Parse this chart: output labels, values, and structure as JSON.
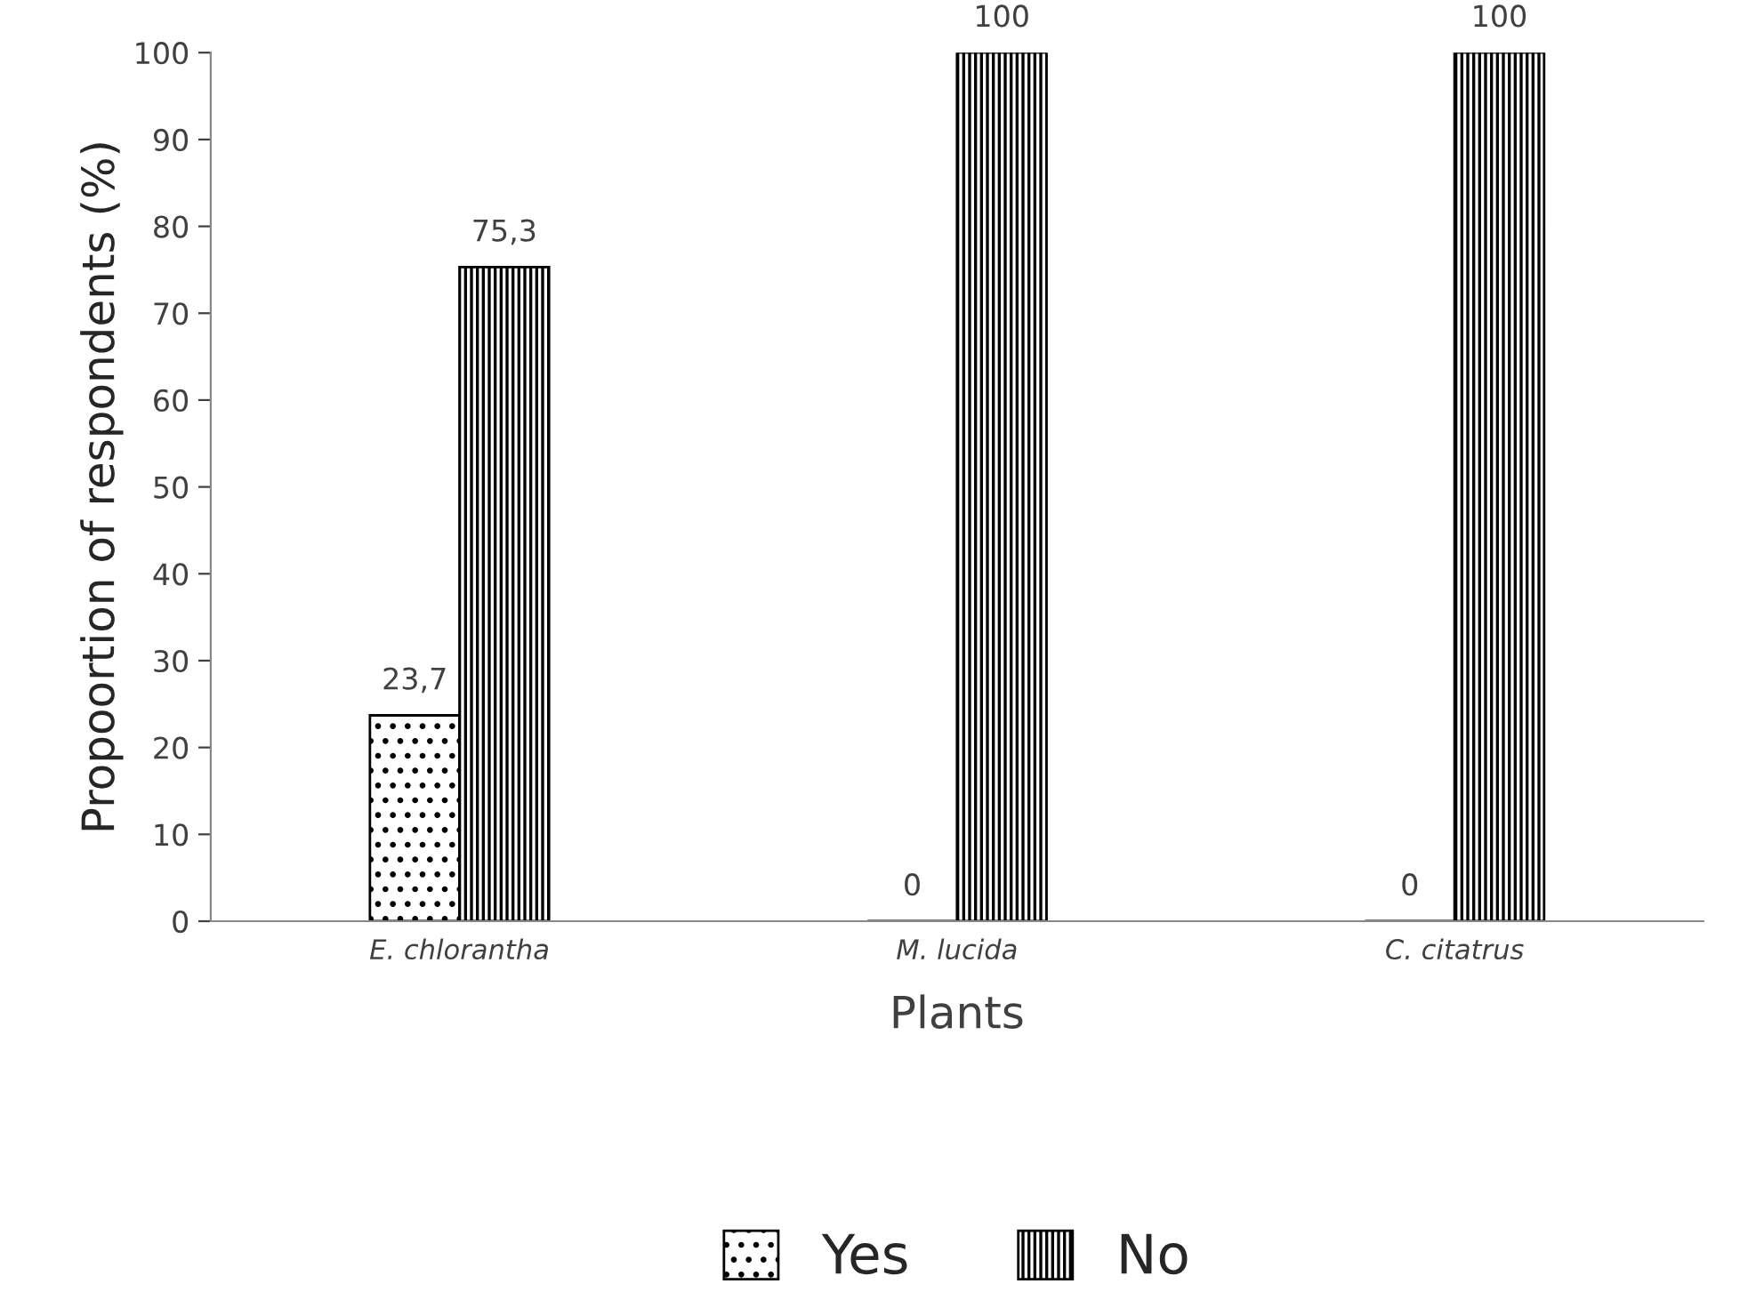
{
  "chart_data": {
    "type": "bar",
    "xlabel": "Plants",
    "ylabel": "Propoortion of respondents (%)",
    "categories": [
      "E. chlorantha",
      "M. lucida",
      "C. citatrus"
    ],
    "series": [
      {
        "name": "Yes",
        "color": "#000000",
        "values": [
          23.7,
          0,
          0
        ],
        "value_labels": [
          "23,7",
          "0",
          "0"
        ]
      },
      {
        "name": "No",
        "color": "#000000",
        "values": [
          75.3,
          100,
          100
        ],
        "value_labels": [
          "75,3",
          "100",
          "100"
        ]
      }
    ],
    "ylim": [
      0,
      100
    ],
    "yticks": [
      0,
      10,
      20,
      30,
      40,
      50,
      60,
      70,
      80,
      90,
      100
    ],
    "grid": false,
    "legend": "bottom"
  }
}
